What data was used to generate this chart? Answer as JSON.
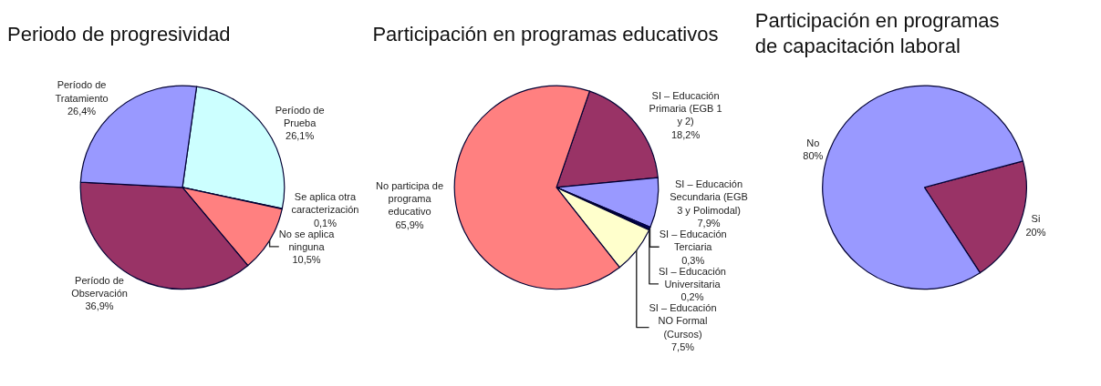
{
  "chart_data": [
    {
      "type": "pie",
      "title": "Periodo de progresividad",
      "categories": [
        "Período de Prueba",
        "Se aplica otra caracterización",
        "No se aplica ninguna",
        "Período de Observación",
        "Período de Tratamiento"
      ],
      "values": [
        26.1,
        0.1,
        10.5,
        36.9,
        26.4
      ],
      "value_labels": [
        "26,1%",
        "0,1%",
        "10,5%",
        "36,9%",
        "26,4%"
      ],
      "colors": [
        "#ccffff",
        "#000080",
        "#ff8080",
        "#993366",
        "#9999ff"
      ]
    },
    {
      "type": "pie",
      "title": "Participación en programas educativos",
      "categories": [
        "SI – Educación Primaria (EGB 1 y 2)",
        "SI – Educación Secundaria (EGB 3 y Polimodal)",
        "SI – Educación Terciaria",
        "SI – Educación Universitaria",
        "SI – Educación NO Formal (Cursos)",
        "No participa de programa educativo"
      ],
      "values": [
        18.2,
        7.9,
        0.3,
        0.2,
        7.5,
        65.9
      ],
      "value_labels": [
        "18,2%",
        "7,9%",
        "0,3%",
        "0,2%",
        "7,5%",
        "65,9%"
      ],
      "colors": [
        "#993366",
        "#9999ff",
        "#000080",
        "#333333",
        "#ffffcc",
        "#ff8080"
      ]
    },
    {
      "type": "pie",
      "title": "Participación en programas de capacitación laboral",
      "categories": [
        "Si",
        "No"
      ],
      "values": [
        20,
        80
      ],
      "value_labels": [
        "20%",
        "80%"
      ],
      "colors": [
        "#993366",
        "#9999ff"
      ]
    }
  ]
}
